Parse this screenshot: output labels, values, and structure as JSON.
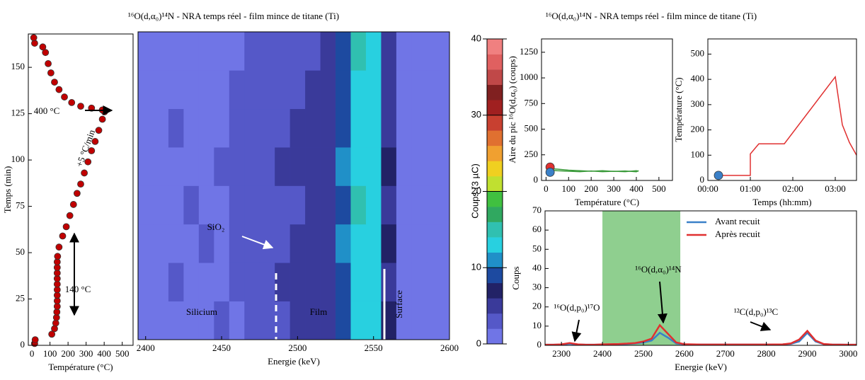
{
  "chart_data": [
    {
      "type": "scatter",
      "xlabel": "Température (°C)",
      "ylabel": "Temps (min)",
      "xlim": [
        -20,
        560
      ],
      "ylim": [
        0,
        168
      ],
      "xticks": [
        0,
        100,
        200,
        300,
        400,
        500
      ],
      "yticks": [
        0,
        25,
        50,
        75,
        100,
        125,
        150
      ],
      "annotations": [
        "400 °C",
        "+5 °C/min",
        "140 °C"
      ],
      "series": [
        {
          "mode": "markers",
          "color": "#c00000",
          "x": [
            15,
            18,
            110,
            125,
            132,
            136,
            138,
            140,
            140,
            140,
            140,
            140,
            140,
            140,
            140,
            140,
            142,
            150,
            170,
            190,
            210,
            230,
            250,
            270,
            290,
            310,
            330,
            350,
            370,
            390,
            402,
            390,
            330,
            270,
            220,
            180,
            150,
            125,
            105,
            90,
            75,
            60,
            15,
            10
          ],
          "values": [
            1,
            3,
            6,
            9,
            12,
            15,
            18,
            21,
            24,
            27,
            30,
            33,
            36,
            39,
            42,
            45,
            48,
            53,
            59,
            64,
            70,
            76,
            82,
            87,
            93,
            99,
            105,
            110,
            116,
            122,
            126,
            127,
            128,
            129,
            131,
            134,
            138,
            142,
            147,
            152,
            158,
            161,
            163,
            166
          ]
        }
      ]
    },
    {
      "type": "heatmap",
      "title": "¹⁶O(d,α₀)¹⁴N - NRA temps réel - film mince de titane (Ti)",
      "xlabel": "Energie (keV)",
      "xlim": [
        2395,
        2600
      ],
      "ylim": [
        0,
        168
      ],
      "xticks": [
        2400,
        2450,
        2500,
        2550,
        2600
      ],
      "annotations": [
        "SiO₂",
        "Silicium",
        "Film",
        "Surface"
      ],
      "x": [
        2400,
        2410,
        2420,
        2430,
        2440,
        2450,
        2460,
        2470,
        2480,
        2490,
        2500,
        2510,
        2520,
        2530,
        2540,
        2550,
        2560,
        2570,
        2580,
        2590
      ],
      "y": [
        10.5,
        31.5,
        52.5,
        73.5,
        94.5,
        115.5,
        136.5,
        157.5
      ],
      "z": [
        [
          1,
          1,
          1,
          1,
          1,
          2,
          1,
          2,
          3,
          3,
          4,
          4,
          5,
          8,
          13,
          12,
          6,
          1,
          1,
          1
        ],
        [
          1,
          1,
          2,
          1,
          1,
          1,
          2,
          2,
          3,
          4,
          4,
          5,
          4,
          9,
          12,
          13,
          5,
          1,
          1,
          1
        ],
        [
          1,
          1,
          1,
          1,
          2,
          1,
          2,
          3,
          2,
          3,
          4,
          4,
          5,
          10,
          13,
          12,
          6,
          1,
          1,
          1
        ],
        [
          1,
          1,
          1,
          2,
          1,
          1,
          2,
          2,
          3,
          3,
          3,
          4,
          5,
          9,
          14,
          12,
          5,
          1,
          1,
          1
        ],
        [
          1,
          1,
          1,
          1,
          1,
          2,
          2,
          3,
          3,
          4,
          4,
          4,
          5,
          10,
          13,
          13,
          6,
          1,
          1,
          1
        ],
        [
          1,
          1,
          2,
          1,
          1,
          1,
          2,
          2,
          3,
          3,
          4,
          5,
          5,
          9,
          12,
          12,
          5,
          1,
          1,
          1
        ],
        [
          1,
          1,
          1,
          1,
          1,
          1,
          2,
          2,
          2,
          3,
          3,
          4,
          4,
          8,
          13,
          12,
          5,
          1,
          1,
          1
        ],
        [
          1,
          1,
          1,
          1,
          1,
          1,
          1,
          2,
          2,
          2,
          3,
          3,
          4,
          8,
          14,
          13,
          5,
          1,
          1,
          1
        ]
      ],
      "colorbar": {
        "label": "Coups (3 µC)",
        "clim": [
          0,
          40
        ],
        "ticks": [
          0,
          10,
          20,
          30,
          40
        ],
        "colors": [
          "#7075e6",
          "#5558c8",
          "#3a3a9a",
          "#222266",
          "#1d4aa0",
          "#2090c8",
          "#28d0e0",
          "#30c0b0",
          "#30a860",
          "#40c040",
          "#c0e030",
          "#f0d020",
          "#f0a030",
          "#e07030",
          "#c84030",
          "#a02020",
          "#802020",
          "#c04848",
          "#e06060",
          "#f08080"
        ]
      }
    },
    {
      "type": "line",
      "title": "¹⁶O(d,α₀)¹⁴N - NRA temps réel - film mince de titane (Ti)",
      "xlabel": "Température (°C)",
      "ylabel": "Aire du pic ¹⁶O(d,α₀) (coups)",
      "xlim": [
        -20,
        560
      ],
      "ylim": [
        0,
        1380
      ],
      "xticks": [
        0,
        100,
        200,
        300,
        400,
        500
      ],
      "yticks": [
        0,
        250,
        500,
        750,
        1000,
        1250
      ],
      "series": [
        {
          "mode": "lines",
          "color": "#3a9a3a",
          "x": [
            20,
            50,
            100,
            150,
            200,
            250,
            300,
            350,
            400,
            410
          ],
          "values": [
            115,
            110,
            100,
            95,
            90,
            95,
            88,
            92,
            85,
            95
          ]
        },
        {
          "mode": "lines",
          "color": "#3a9a3a",
          "x": [
            20,
            50,
            100,
            150,
            200,
            250,
            300,
            350,
            400,
            410
          ],
          "values": [
            100,
            95,
            90,
            85,
            92,
            85,
            90,
            85,
            95,
            90
          ]
        },
        {
          "mode": "markers",
          "color": "#e03030",
          "x": [
            18
          ],
          "values": [
            130
          ]
        },
        {
          "mode": "markers",
          "color": "#3a80c8",
          "x": [
            18
          ],
          "values": [
            80
          ]
        }
      ]
    },
    {
      "type": "line",
      "xlabel": "Temps (hh:mm)",
      "ylabel": "Température (°C)",
      "xlim": [
        0,
        210
      ],
      "ylim": [
        0,
        560
      ],
      "xticks": [
        {
          "value": 0,
          "label": "00:00"
        },
        {
          "value": 60,
          "label": "01:00"
        },
        {
          "value": 120,
          "label": "02:00"
        },
        {
          "value": 180,
          "label": "03:00"
        }
      ],
      "yticks": [
        0,
        100,
        200,
        300,
        400,
        500
      ],
      "series": [
        {
          "mode": "lines",
          "color": "#e03030",
          "x": [
            10,
            60,
            60,
            72,
            108,
            180,
            190,
            200,
            210
          ],
          "values": [
            20,
            20,
            105,
            145,
            145,
            410,
            220,
            150,
            100
          ]
        },
        {
          "mode": "markers",
          "color": "#3a80c8",
          "x": [
            15
          ],
          "values": [
            20
          ]
        }
      ]
    },
    {
      "type": "line",
      "xlabel": "Energie (keV)",
      "ylabel": "Coups",
      "xlim": [
        2260,
        3020
      ],
      "ylim": [
        0,
        70
      ],
      "xticks": [
        2300,
        2400,
        2500,
        2600,
        2700,
        2800,
        2900,
        3000
      ],
      "yticks": [
        0,
        10,
        20,
        30,
        40,
        50,
        60,
        70
      ],
      "span": [
        2400,
        2590
      ],
      "span_color": "#8fcf8f",
      "annotations": [
        "¹⁶O(d,p₀)¹⁷O",
        "¹⁶O(d,α₀)¹⁴N",
        "¹²C(d,p₀)¹³C"
      ],
      "series": [
        {
          "name": "Avant recuit",
          "mode": "lines",
          "color": "#3a80c8",
          "x": [
            2260,
            2280,
            2300,
            2320,
            2340,
            2360,
            2380,
            2400,
            2420,
            2440,
            2460,
            2480,
            2500,
            2520,
            2540,
            2560,
            2580,
            2600,
            2640,
            2680,
            2720,
            2760,
            2800,
            2840,
            2860,
            2880,
            2900,
            2920,
            2940,
            2960,
            3000,
            3020
          ],
          "values": [
            0.3,
            0.3,
            0.4,
            0.8,
            0.4,
            0.3,
            0.3,
            0.4,
            0.5,
            0.6,
            0.7,
            1,
            1.5,
            2.5,
            6.5,
            4,
            1,
            0.5,
            0.4,
            0.4,
            0.4,
            0.4,
            0.4,
            0.5,
            0.8,
            2,
            6.5,
            2,
            0.6,
            0.4,
            0.3,
            0.3
          ]
        },
        {
          "name": "Après recuit",
          "mode": "lines",
          "color": "#e03030",
          "x": [
            2260,
            2280,
            2300,
            2320,
            2340,
            2360,
            2380,
            2400,
            2420,
            2440,
            2460,
            2480,
            2500,
            2520,
            2540,
            2560,
            2580,
            2600,
            2640,
            2680,
            2720,
            2760,
            2800,
            2840,
            2860,
            2880,
            2900,
            2920,
            2940,
            2960,
            3000,
            3020
          ],
          "values": [
            0.3,
            0.3,
            0.5,
            1.2,
            0.5,
            0.3,
            0.3,
            0.5,
            0.6,
            0.7,
            0.9,
            1.2,
            2,
            3.5,
            10.5,
            6,
            1.5,
            0.6,
            0.4,
            0.4,
            0.4,
            0.4,
            0.4,
            0.5,
            1,
            3,
            7.5,
            2.5,
            0.7,
            0.4,
            0.3,
            0.3
          ]
        }
      ]
    }
  ]
}
